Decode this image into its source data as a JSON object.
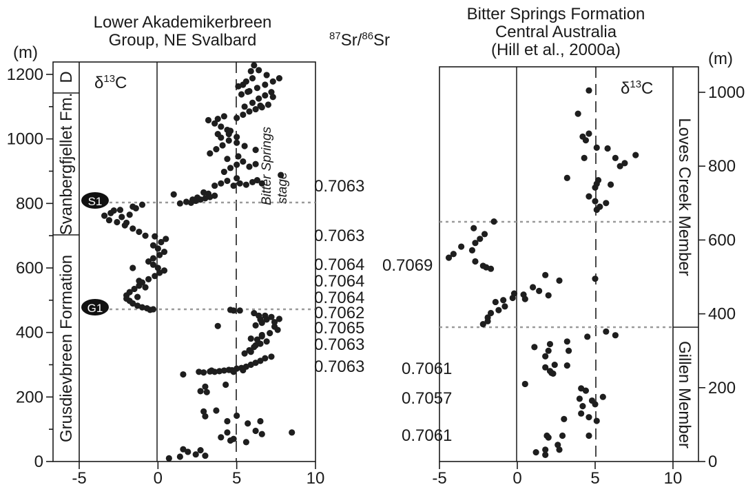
{
  "colors": {
    "ink": "#1a1a1a",
    "points": "#1e1e1e",
    "boundary": "#9a9a9a"
  },
  "left": {
    "title_line1": "Lower Akademikerbreen",
    "title_line2": "Group, NE Svalbard",
    "unit": "(m)",
    "delta_label": "δ",
    "delta_sup": "13",
    "delta_tail": "C",
    "units": [
      {
        "label": "D"
      },
      {
        "label": "Svanbergfjellet Fm."
      },
      {
        "label": "Grusdievbreen Formation"
      }
    ],
    "markers": [
      "S1",
      "G1"
    ],
    "stage_line1": "Bitter Springs",
    "stage_line2": "stage"
  },
  "sr_header": {
    "sup1": "87",
    "mid": "Sr/",
    "sup2": "86",
    "tail": "Sr"
  },
  "sr_left": [
    "0.7063",
    "0.7063",
    "0.7064",
    "0.7064",
    "0.7064",
    "0.7062",
    "0.7065",
    "0.7063",
    "0.7063"
  ],
  "right": {
    "title_line1": "Bitter Springs Formation",
    "title_line2": "Central Australia",
    "title_line3": "(Hill et al., 2000a)",
    "unit": "(m)",
    "delta_label": "δ",
    "delta_sup": "13",
    "delta_tail": "C",
    "units": [
      {
        "label": "Loves Creek Member"
      },
      {
        "label": "Gillen Member"
      }
    ]
  },
  "sr_right": [
    "0.7069",
    "0.7061",
    "0.7057",
    "0.7061"
  ],
  "chart_data": [
    {
      "type": "scatter",
      "title": "Lower Akademikerbreen Group, NE Svalbard",
      "xlabel": "δ13C",
      "ylabel": "(m)",
      "xlim": [
        -5,
        10
      ],
      "ylim": [
        0,
        1240
      ],
      "x_ticks": [
        "-5",
        "0",
        "5",
        "10"
      ],
      "y_ticks": [
        "0",
        "200",
        "400",
        "600",
        "800",
        "1000",
        "1200"
      ],
      "reference_line_x": 5,
      "boundaries_m": [
        805,
        470
      ],
      "unit_boundaries_m": [
        1145,
        710
      ],
      "points": [
        [
          0.7,
          10
        ],
        [
          1.4,
          15
        ],
        [
          1.6,
          38
        ],
        [
          2.4,
          22
        ],
        [
          2.7,
          35
        ],
        [
          1.9,
          30
        ],
        [
          3.0,
          18
        ],
        [
          4.0,
          75
        ],
        [
          4.4,
          90
        ],
        [
          4.8,
          70
        ],
        [
          5.6,
          60
        ],
        [
          6.2,
          95
        ],
        [
          6.6,
          85
        ],
        [
          8.5,
          90
        ],
        [
          4.6,
          65
        ],
        [
          3.0,
          140
        ],
        [
          3.7,
          158
        ],
        [
          4.4,
          125
        ],
        [
          5.0,
          142
        ],
        [
          5.7,
          118
        ],
        [
          6.5,
          125
        ],
        [
          2.9,
          155
        ],
        [
          2.7,
          218
        ],
        [
          3.0,
          232
        ],
        [
          4.3,
          238
        ],
        [
          3.1,
          215
        ],
        [
          1.6,
          270
        ],
        [
          2.6,
          278
        ],
        [
          2.9,
          276
        ],
        [
          3.3,
          279
        ],
        [
          3.6,
          278
        ],
        [
          3.9,
          280
        ],
        [
          4.2,
          282
        ],
        [
          4.5,
          284
        ],
        [
          4.7,
          283
        ],
        [
          5.0,
          288
        ],
        [
          5.3,
          290
        ],
        [
          5.6,
          294
        ],
        [
          5.9,
          300
        ],
        [
          6.2,
          306
        ],
        [
          6.5,
          312
        ],
        [
          6.8,
          320
        ],
        [
          7.2,
          325
        ],
        [
          4.8,
          278
        ],
        [
          5.4,
          283
        ],
        [
          3.4,
          282
        ],
        [
          5.5,
          335
        ],
        [
          5.8,
          345
        ],
        [
          6.1,
          355
        ],
        [
          6.5,
          365
        ],
        [
          6.9,
          372
        ],
        [
          6.2,
          360
        ],
        [
          5.9,
          340
        ],
        [
          6.3,
          378
        ],
        [
          6.6,
          388
        ],
        [
          7.1,
          398
        ],
        [
          7.6,
          408
        ],
        [
          7.4,
          418
        ],
        [
          6.6,
          392
        ],
        [
          5.9,
          381
        ],
        [
          6.2,
          422
        ],
        [
          6.6,
          430
        ],
        [
          6.9,
          440
        ],
        [
          7.2,
          448
        ],
        [
          7.7,
          442
        ],
        [
          6.4,
          452
        ],
        [
          6.1,
          460
        ],
        [
          6.8,
          452
        ],
        [
          6.5,
          440
        ],
        [
          7.4,
          432
        ],
        [
          3.8,
          420
        ],
        [
          4.8,
          468
        ],
        [
          5.2,
          468
        ],
        [
          4.6,
          470
        ],
        [
          -0.5,
          470
        ],
        [
          -0.3,
          472
        ],
        [
          -0.7,
          475
        ],
        [
          -1.0,
          478
        ],
        [
          -1.3,
          483
        ],
        [
          -1.6,
          490
        ],
        [
          -1.8,
          498
        ],
        [
          -2.0,
          505
        ],
        [
          -2.0,
          515
        ],
        [
          -1.8,
          525
        ],
        [
          -1.5,
          535
        ],
        [
          -1.2,
          545
        ],
        [
          -1.0,
          555
        ],
        [
          -0.6,
          565
        ],
        [
          -0.2,
          575
        ],
        [
          0.1,
          585
        ],
        [
          0.4,
          592
        ],
        [
          0.0,
          600
        ],
        [
          -0.3,
          610
        ],
        [
          -0.6,
          620
        ],
        [
          -0.3,
          630
        ],
        [
          0.1,
          640
        ],
        [
          0.4,
          650
        ],
        [
          0.0,
          660
        ],
        [
          -0.3,
          670
        ],
        [
          0.2,
          680
        ],
        [
          0.5,
          690
        ],
        [
          -0.2,
          698
        ],
        [
          -1.6,
          600
        ],
        [
          -1.2,
          560
        ],
        [
          -0.8,
          540
        ],
        [
          -1.3,
          510
        ],
        [
          -0.8,
          700
        ],
        [
          -1.2,
          712
        ],
        [
          -1.6,
          722
        ],
        [
          -2.1,
          732
        ],
        [
          -2.6,
          742
        ],
        [
          -3.1,
          748
        ],
        [
          -2.3,
          758
        ],
        [
          -1.8,
          765
        ],
        [
          -3.0,
          770
        ],
        [
          -2.4,
          780
        ],
        [
          -1.6,
          790
        ],
        [
          -1.0,
          796
        ],
        [
          -1.4,
          785
        ],
        [
          -2.8,
          778
        ],
        [
          -3.4,
          762
        ],
        [
          -2.0,
          740
        ],
        [
          1.0,
          828
        ],
        [
          1.4,
          800
        ],
        [
          1.8,
          805
        ],
        [
          2.1,
          802
        ],
        [
          2.4,
          808
        ],
        [
          2.7,
          812
        ],
        [
          3.0,
          816
        ],
        [
          3.3,
          820
        ],
        [
          3.6,
          824
        ],
        [
          2.9,
          834
        ],
        [
          3.2,
          830
        ],
        [
          2.2,
          812
        ],
        [
          2.5,
          818
        ],
        [
          3.6,
          855
        ],
        [
          4.0,
          862
        ],
        [
          4.4,
          870
        ],
        [
          4.8,
          855
        ],
        [
          5.2,
          862
        ],
        [
          5.6,
          858
        ],
        [
          6.0,
          866
        ],
        [
          6.3,
          872
        ],
        [
          6.6,
          862
        ],
        [
          7.8,
          888
        ],
        [
          5.0,
          878
        ],
        [
          4.2,
          898
        ],
        [
          4.6,
          910
        ],
        [
          5.0,
          920
        ],
        [
          5.4,
          930
        ],
        [
          5.8,
          914
        ],
        [
          6.2,
          922
        ],
        [
          4.4,
          938
        ],
        [
          5.1,
          946
        ],
        [
          3.3,
          955
        ],
        [
          3.7,
          968
        ],
        [
          4.1,
          980
        ],
        [
          4.5,
          995
        ],
        [
          5.0,
          988
        ],
        [
          5.5,
          978
        ],
        [
          6.2,
          966
        ],
        [
          4.0,
          1004
        ],
        [
          4.5,
          1015
        ],
        [
          5.0,
          1006
        ],
        [
          3.2,
          1058
        ],
        [
          3.6,
          1048
        ],
        [
          4.0,
          1038
        ],
        [
          4.4,
          1028
        ],
        [
          3.8,
          1062
        ],
        [
          4.2,
          1070
        ],
        [
          3.8,
          1015
        ],
        [
          4.6,
          1025
        ],
        [
          5.0,
          1065
        ],
        [
          5.4,
          1075
        ],
        [
          5.8,
          1085
        ],
        [
          6.2,
          1092
        ],
        [
          6.6,
          1098
        ],
        [
          7.0,
          1106
        ],
        [
          5.5,
          1100
        ],
        [
          6.0,
          1112
        ],
        [
          6.4,
          1125
        ],
        [
          6.8,
          1135
        ],
        [
          7.2,
          1145
        ],
        [
          5.8,
          1148
        ],
        [
          6.3,
          1158
        ],
        [
          6.8,
          1168
        ],
        [
          7.3,
          1178
        ],
        [
          7.7,
          1188
        ],
        [
          5.6,
          1178
        ],
        [
          6.0,
          1188
        ],
        [
          5.9,
          1210
        ],
        [
          6.4,
          1213
        ],
        [
          6.1,
          1228
        ],
        [
          6.9,
          1198
        ],
        [
          5.1,
          1163
        ],
        [
          5.4,
          1168
        ],
        [
          5.7,
          1146
        ],
        [
          5.3,
          1138
        ],
        [
          6.5,
          1103
        ],
        [
          7.3,
          1130
        ]
      ]
    },
    {
      "type": "scatter",
      "title": "Bitter Springs Formation Central Australia (Hill et al., 2000a)",
      "xlabel": "δ13C",
      "ylabel": "(m)",
      "xlim": [
        -5,
        10
      ],
      "ylim": [
        0,
        1075
      ],
      "x_ticks": [
        "-5",
        "0",
        "5",
        "10"
      ],
      "y_ticks": [
        "0",
        "200",
        "400",
        "600",
        "800",
        "1000"
      ],
      "reference_line_x": 5,
      "boundaries_m": [
        655,
        370
      ],
      "points": [
        [
          4.6,
          1005
        ],
        [
          3.9,
          942
        ],
        [
          4.2,
          880
        ],
        [
          4.4,
          870
        ],
        [
          4.6,
          888
        ],
        [
          5.1,
          850
        ],
        [
          4.3,
          822
        ],
        [
          6.3,
          822
        ],
        [
          5.8,
          848
        ],
        [
          7.6,
          830
        ],
        [
          6.9,
          808
        ],
        [
          6.6,
          800
        ],
        [
          3.2,
          768
        ],
        [
          5.2,
          762
        ],
        [
          5.1,
          752
        ],
        [
          6.0,
          750
        ],
        [
          5.0,
          742
        ],
        [
          4.6,
          718
        ],
        [
          5.0,
          705
        ],
        [
          5.7,
          700
        ],
        [
          5.3,
          690
        ],
        [
          5.1,
          682
        ],
        [
          -1.5,
          650
        ],
        [
          -2.8,
          632
        ],
        [
          -2.1,
          616
        ],
        [
          -2.4,
          603
        ],
        [
          -2.7,
          592
        ],
        [
          -3.6,
          582
        ],
        [
          -2.9,
          572
        ],
        [
          -4.1,
          562
        ],
        [
          -4.4,
          552
        ],
        [
          -2.7,
          542
        ],
        [
          -2.2,
          530
        ],
        [
          -1.7,
          522
        ],
        [
          -2.0,
          526
        ],
        [
          5.0,
          495
        ],
        [
          2.7,
          490
        ],
        [
          1.8,
          505
        ],
        [
          1.0,
          472
        ],
        [
          1.4,
          462
        ],
        [
          2.0,
          450
        ],
        [
          -0.2,
          455
        ],
        [
          0.4,
          452
        ],
        [
          -0.3,
          443
        ],
        [
          -0.9,
          437
        ],
        [
          -1.4,
          432
        ],
        [
          0.5,
          440
        ],
        [
          -0.8,
          420
        ],
        [
          -1.2,
          410
        ],
        [
          -1.7,
          402
        ],
        [
          -1.9,
          390
        ],
        [
          -1.9,
          380
        ],
        [
          -2.2,
          372
        ],
        [
          5.7,
          352
        ],
        [
          6.3,
          342
        ],
        [
          4.5,
          338
        ],
        [
          3.2,
          325
        ],
        [
          2.1,
          318
        ],
        [
          1.1,
          310
        ],
        [
          2.0,
          300
        ],
        [
          3.3,
          300
        ],
        [
          1.8,
          285
        ],
        [
          2.4,
          262
        ],
        [
          1.8,
          255
        ],
        [
          2.1,
          245
        ],
        [
          3.2,
          260
        ],
        [
          0.5,
          210
        ],
        [
          2.3,
          238
        ],
        [
          2.2,
          240
        ],
        [
          4.1,
          198
        ],
        [
          4.4,
          192
        ],
        [
          5.5,
          175
        ],
        [
          4.0,
          170
        ],
        [
          4.8,
          165
        ],
        [
          4.2,
          150
        ],
        [
          5.0,
          155
        ],
        [
          4.1,
          130
        ],
        [
          4.6,
          120
        ],
        [
          3.0,
          115
        ],
        [
          5.1,
          110
        ],
        [
          2.0,
          65
        ],
        [
          1.9,
          70
        ],
        [
          2.9,
          70
        ],
        [
          4.6,
          70
        ],
        [
          2.6,
          45
        ],
        [
          2.7,
          32
        ],
        [
          1.8,
          32
        ],
        [
          1.2,
          25
        ],
        [
          1.8,
          18
        ]
      ]
    }
  ]
}
